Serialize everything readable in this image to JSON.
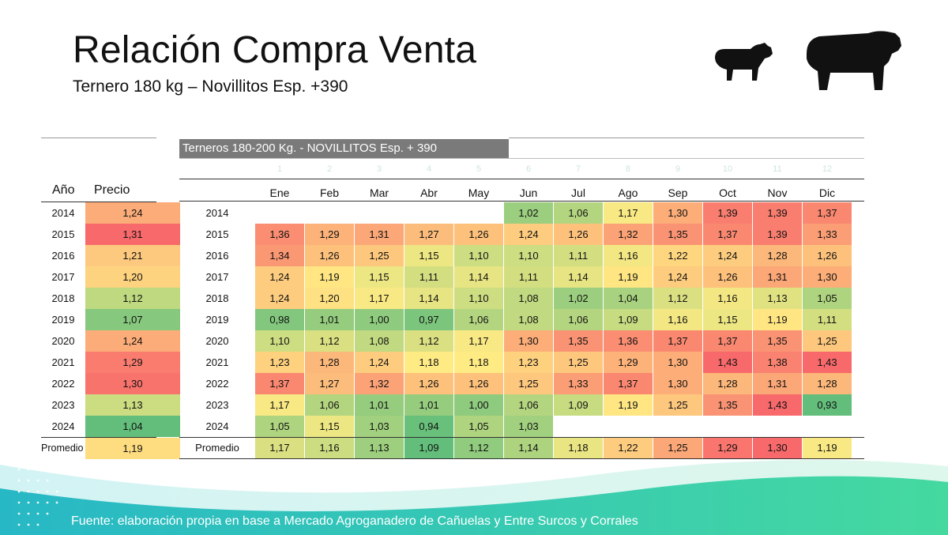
{
  "title": "Relación Compra Venta",
  "subtitle": "Ternero 180 kg – Novillitos Esp. +390",
  "colors": {
    "low": "#63be7b",
    "mid": "#ffeb84",
    "high": "#f8696b",
    "banner": "#7a7a7a",
    "footer_teal": "#2bbfc2",
    "footer_green": "#3ed6a0"
  },
  "chart_data": [
    {
      "type": "table",
      "columns": [
        "Año",
        "Precio"
      ],
      "rows": [
        {
          "year": "2014",
          "value": "1,24"
        },
        {
          "year": "2015",
          "value": "1,31"
        },
        {
          "year": "2016",
          "value": "1,21"
        },
        {
          "year": "2017",
          "value": "1,20"
        },
        {
          "year": "2018",
          "value": "1,12"
        },
        {
          "year": "2019",
          "value": "1,07"
        },
        {
          "year": "2020",
          "value": "1,24"
        },
        {
          "year": "2021",
          "value": "1,29"
        },
        {
          "year": "2022",
          "value": "1,30"
        },
        {
          "year": "2023",
          "value": "1,13"
        },
        {
          "year": "2024",
          "value": "1,04"
        }
      ],
      "average_label": "Promedio",
      "average": "1,19"
    },
    {
      "type": "heatmap",
      "title": "Terneros 180-200 Kg. - NOVILLITOS Esp. + 390",
      "ghost_numbers": [
        "1",
        "2",
        "3",
        "4",
        "5",
        "6",
        "7",
        "8",
        "9",
        "10",
        "11",
        "12"
      ],
      "months": [
        "Ene",
        "Feb",
        "Mar",
        "Abr",
        "May",
        "Jun",
        "Jul",
        "Ago",
        "Sep",
        "Oct",
        "Nov",
        "Dic"
      ],
      "rows": [
        {
          "year": "2014",
          "values": [
            "",
            "",
            "",
            "",
            "",
            "1,02",
            "1,06",
            "1,17",
            "1,30",
            "1,39",
            "1,39",
            "1,37"
          ]
        },
        {
          "year": "2015",
          "values": [
            "1,36",
            "1,29",
            "1,31",
            "1,27",
            "1,26",
            "1,24",
            "1,26",
            "1,32",
            "1,35",
            "1,37",
            "1,39",
            "1,33"
          ]
        },
        {
          "year": "2016",
          "values": [
            "1,34",
            "1,26",
            "1,25",
            "1,15",
            "1,10",
            "1,10",
            "1,11",
            "1,16",
            "1,22",
            "1,24",
            "1,28",
            "1,26"
          ]
        },
        {
          "year": "2017",
          "values": [
            "1,24",
            "1,19",
            "1,15",
            "1,11",
            "1,14",
            "1,11",
            "1,14",
            "1,19",
            "1,24",
            "1,26",
            "1,31",
            "1,30"
          ]
        },
        {
          "year": "2018",
          "values": [
            "1,24",
            "1,20",
            "1,17",
            "1,14",
            "1,10",
            "1,08",
            "1,02",
            "1,04",
            "1,12",
            "1,16",
            "1,13",
            "1,05"
          ]
        },
        {
          "year": "2019",
          "values": [
            "0,98",
            "1,01",
            "1,00",
            "0,97",
            "1,06",
            "1,08",
            "1,06",
            "1,09",
            "1,16",
            "1,15",
            "1,19",
            "1,11"
          ]
        },
        {
          "year": "2020",
          "values": [
            "1,10",
            "1,12",
            "1,08",
            "1,12",
            "1,17",
            "1,30",
            "1,35",
            "1,36",
            "1,37",
            "1,37",
            "1,35",
            "1,25"
          ]
        },
        {
          "year": "2021",
          "values": [
            "1,23",
            "1,28",
            "1,24",
            "1,18",
            "1,18",
            "1,23",
            "1,25",
            "1,29",
            "1,30",
            "1,43",
            "1,38",
            "1,43"
          ]
        },
        {
          "year": "2022",
          "values": [
            "1,37",
            "1,27",
            "1,32",
            "1,26",
            "1,26",
            "1,25",
            "1,33",
            "1,37",
            "1,30",
            "1,28",
            "1,31",
            "1,28"
          ]
        },
        {
          "year": "2023",
          "values": [
            "1,17",
            "1,06",
            "1,01",
            "1,01",
            "1,00",
            "1,06",
            "1,09",
            "1,19",
            "1,25",
            "1,35",
            "1,43",
            "0,93"
          ]
        },
        {
          "year": "2024",
          "values": [
            "1,05",
            "1,15",
            "1,03",
            "0,94",
            "1,05",
            "1,03",
            "",
            "",
            "",
            "",
            "",
            ""
          ]
        }
      ],
      "average_label": "Promedio",
      "averages": [
        "1,17",
        "1,16",
        "1,13",
        "1,09",
        "1,12",
        "1,14",
        "1,18",
        "1,22",
        "1,25",
        "1,29",
        "1,30",
        "1,19"
      ]
    }
  ],
  "footer": {
    "source": "Fuente: elaboración propia en base a Mercado Agroganadero de Cañuelas y Entre Surcos y Corrales"
  }
}
